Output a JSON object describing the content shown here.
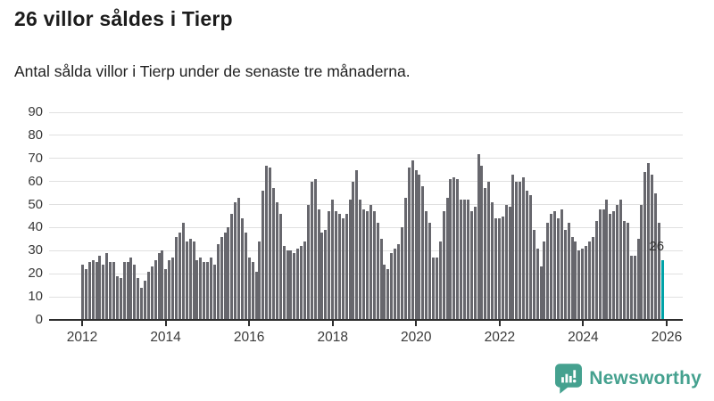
{
  "header": {
    "title": "26 villor såldes i Tierp",
    "subtitle": "Antal sålda villor i Tierp under de senaste tre månaderna."
  },
  "chart_data": {
    "type": "bar",
    "title": "26 villor såldes i Tierp",
    "subtitle": "Antal sålda villor i Tierp under de senaste tre månaderna.",
    "x_unit": "month",
    "x_start": "2012-01",
    "x_end": "2025-12",
    "ylim": [
      0,
      90
    ],
    "y_ticks": [
      0,
      10,
      20,
      30,
      40,
      50,
      60,
      70,
      80,
      90
    ],
    "x_tick_labels": [
      "2012",
      "2014",
      "2016",
      "2018",
      "2020",
      "2022",
      "2024",
      "2026"
    ],
    "grid": true,
    "legend": false,
    "bar_color": "#67676d",
    "highlight_color": "#00a3a8",
    "highlight_index": 167,
    "highlight_label": "26",
    "values": [
      24,
      22,
      25,
      26,
      25,
      28,
      24,
      29,
      25,
      25,
      19,
      18,
      25,
      25,
      27,
      24,
      18,
      14,
      17,
      21,
      23,
      26,
      29,
      30,
      22,
      26,
      27,
      36,
      38,
      42,
      34,
      35,
      34,
      26,
      27,
      25,
      25,
      27,
      24,
      33,
      36,
      38,
      40,
      46,
      51,
      53,
      44,
      38,
      27,
      25,
      21,
      34,
      56,
      67,
      66,
      57,
      51,
      46,
      32,
      30,
      30,
      29,
      31,
      32,
      34,
      50,
      60,
      61,
      48,
      38,
      39,
      47,
      52,
      47,
      46,
      44,
      46,
      52,
      60,
      65,
      52,
      48,
      47,
      50,
      47,
      42,
      35,
      24,
      22,
      29,
      31,
      33,
      40,
      53,
      66,
      69,
      65,
      63,
      58,
      47,
      42,
      27,
      27,
      34,
      47,
      53,
      61,
      62,
      61,
      52,
      52,
      52,
      47,
      49,
      72,
      67,
      57,
      60,
      51,
      44,
      44,
      45,
      50,
      49,
      63,
      60,
      60,
      62,
      56,
      54,
      39,
      31,
      23,
      34,
      42,
      46,
      47,
      44,
      48,
      39,
      42,
      36,
      34,
      30,
      31,
      32,
      34,
      36,
      43,
      48,
      48,
      52,
      46,
      47,
      50,
      52,
      43,
      42,
      28,
      28,
      35,
      50,
      64,
      68,
      63,
      55,
      42,
      26
    ]
  },
  "footer": {
    "brand": "Newsworthy",
    "brand_color": "#45a18f"
  }
}
